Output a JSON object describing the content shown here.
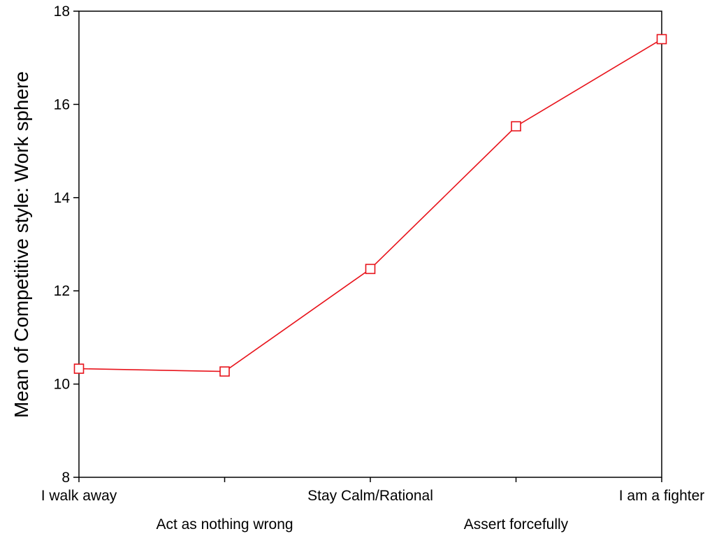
{
  "chart_data": {
    "type": "line",
    "title": "",
    "xlabel": "",
    "ylabel": "Mean of Competitive style: Work sphere",
    "categories": [
      "I walk away",
      "Act as nothing wrong",
      "Stay Calm/Rational",
      "Assert forcefully",
      "I am a fighter"
    ],
    "series": [
      {
        "values": [
          10.33,
          10.27,
          12.47,
          15.53,
          17.4
        ]
      }
    ],
    "ylim": [
      8,
      18
    ],
    "yticks": [
      8,
      10,
      12,
      14,
      16,
      18
    ],
    "grid": false,
    "legend": "none",
    "marker": "open-square",
    "colors": {
      "series": "#e8131b",
      "axis": "#000000"
    }
  }
}
